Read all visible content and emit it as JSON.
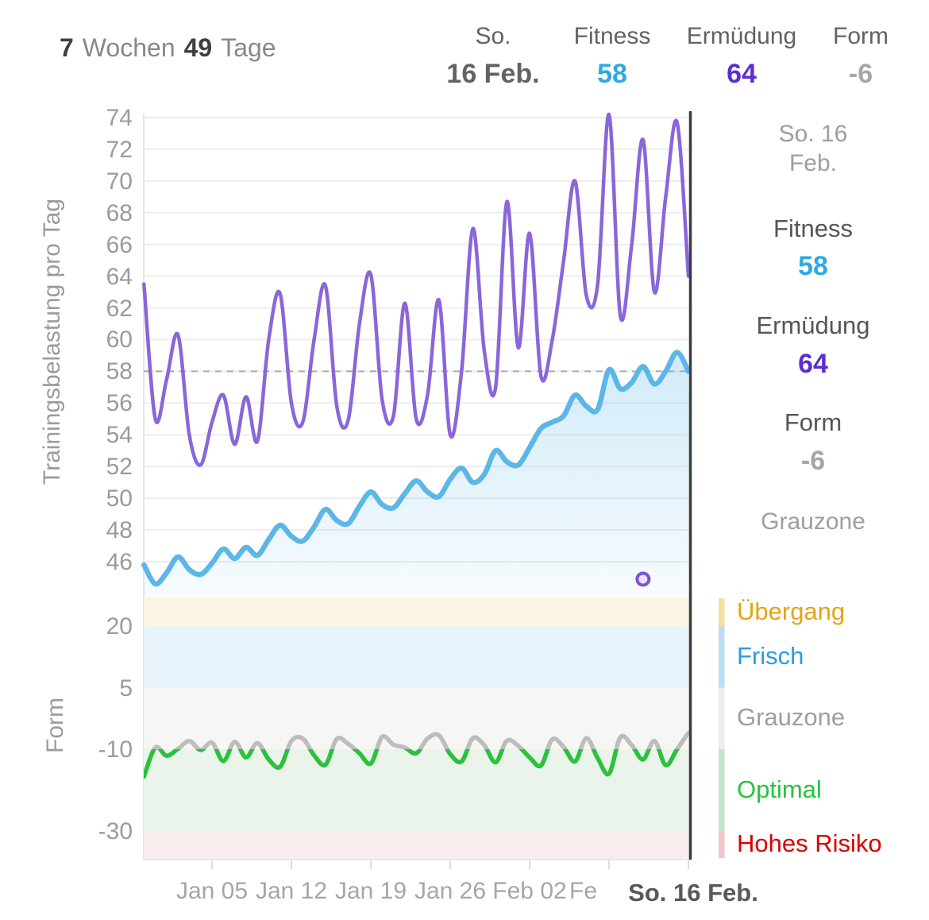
{
  "header": {
    "period": {
      "weeks_value": "7",
      "weeks_label": "Wochen",
      "days_value": "49",
      "days_label": "Tage"
    },
    "summary": {
      "day_label": "So.",
      "date_value": "16 Feb.",
      "fitness_label": "Fitness",
      "fitness_value": "58",
      "fatigue_label": "Ermüdung",
      "fatigue_value": "64",
      "form_label": "Form",
      "form_value": "-6"
    }
  },
  "sidebar": {
    "date_line1": "So. 16",
    "date_line2": "Feb.",
    "fitness_label": "Fitness",
    "fitness_value": "58",
    "fatigue_label": "Ermüdung",
    "fatigue_value": "64",
    "form_label": "Form",
    "form_value": "-6",
    "zone_label": "Grauzone"
  },
  "zones": [
    {
      "label": "Übergang",
      "from": 20,
      "to": 27.3,
      "band_color": "#FBF6E3",
      "strip_color": "#F3E0A2",
      "text_color": "#E3A50F"
    },
    {
      "label": "Frisch",
      "from": 5,
      "to": 20,
      "band_color": "#E8F2FA",
      "strip_color": "#BCDCF3",
      "text_color": "#2D9BE8"
    },
    {
      "label": "Grauzone",
      "from": -10,
      "to": 5,
      "band_color": "#F6F6F4",
      "strip_color": "#ECECEA",
      "text_color": "#9E9E9E"
    },
    {
      "label": "Optimal",
      "from": -30,
      "to": -10,
      "band_color": "#EAF4EB",
      "strip_color": "#C6E5C9",
      "text_color": "#27C23E"
    },
    {
      "label": "Hohes Risiko",
      "from": -37,
      "to": -30,
      "band_color": "#F9ECEC",
      "strip_color": "#F1C6CA",
      "text_color": "#DB0000"
    }
  ],
  "colors": {
    "fitness_value": "#2FA9E1",
    "fatigue_value": "#5A2ECF",
    "form_value_muted": "#A6A6A6",
    "fatigue_line": "#8A66D9",
    "fitness_line": "#5CB6E7",
    "form_line_optimal": "#2CC13D",
    "form_line_gray": "#BDBDBD",
    "cursor": "#3C3C3C",
    "grid": "#EDEDED",
    "tick_text": "#9B9B9B",
    "dashed_ref": "#ABABAB"
  },
  "chart_data": [
    {
      "type": "line",
      "title": "Trainingsbelastung (Fitness / Ermüdung) über 49 Tage",
      "ylabel": "Trainingsbelastung pro Tag",
      "x_days": 49,
      "xticklabels": [
        "Jan 05",
        "Jan 12",
        "Jan 19",
        "Jan 26",
        "Feb 02",
        "Fe"
      ],
      "cursor_xlabel": "So. 16 Feb.",
      "yticks": [
        74,
        72,
        70,
        68,
        66,
        64,
        62,
        60,
        58,
        56,
        54,
        52,
        50,
        48,
        46
      ],
      "ylim": [
        43.8,
        74.4
      ],
      "grid": true,
      "reference_line": 58,
      "series": [
        {
          "name": "Ermüdung",
          "color": "#8A66D9",
          "values": [
            63.5,
            55.0,
            57.5,
            60.3,
            54.0,
            52.1,
            54.8,
            56.5,
            53.4,
            56.4,
            53.6,
            60.0,
            62.9,
            56.0,
            54.8,
            60.0,
            63.4,
            55.8,
            54.9,
            61.0,
            64.1,
            56.2,
            55.2,
            62.3,
            55.0,
            56.5,
            62.5,
            54.0,
            58.0,
            67.0,
            59.3,
            57.0,
            68.7,
            59.5,
            66.7,
            57.7,
            60.0,
            65.0,
            70.0,
            62.8,
            63.5,
            74.2,
            61.5,
            66.0,
            72.6,
            63.0,
            69.0,
            73.7,
            64.0
          ]
        },
        {
          "name": "Fitness",
          "color": "#5CB6E7",
          "area_fill": true,
          "values": [
            45.8,
            44.6,
            45.3,
            46.3,
            45.5,
            45.2,
            45.9,
            46.8,
            46.2,
            46.9,
            46.4,
            47.4,
            48.3,
            47.6,
            47.3,
            48.2,
            49.3,
            48.6,
            48.4,
            49.5,
            50.4,
            49.6,
            49.4,
            50.3,
            51.1,
            50.4,
            50.1,
            51.2,
            51.9,
            51.0,
            51.5,
            53.0,
            52.3,
            52.1,
            53.2,
            54.4,
            54.8,
            55.2,
            56.5,
            55.8,
            55.6,
            58.1,
            56.9,
            57.3,
            58.3,
            57.2,
            58.0,
            59.2,
            58.0
          ]
        }
      ],
      "marker": {
        "day": 44,
        "value": 44.9
      }
    },
    {
      "type": "line",
      "title": "Form über 49 Tage",
      "ylabel": "Form",
      "yticks": [
        20,
        5,
        -10,
        -30
      ],
      "ylim": [
        -37,
        27.3
      ],
      "threshold": -10,
      "series": [
        {
          "name": "Form",
          "values": [
            -16.7,
            -9.6,
            -11.6,
            -9.9,
            -8.0,
            -10.2,
            -8.4,
            -12.9,
            -8.2,
            -12.0,
            -8.5,
            -12.5,
            -14.3,
            -8.0,
            -7.4,
            -11.5,
            -13.8,
            -7.5,
            -8.7,
            -11.0,
            -13.5,
            -7.0,
            -8.9,
            -9.6,
            -11.0,
            -7.4,
            -6.6,
            -11.2,
            -13.0,
            -7.3,
            -9.0,
            -13.2,
            -7.9,
            -9.2,
            -12.0,
            -14.0,
            -7.6,
            -9.5,
            -13.0,
            -7.3,
            -12.2,
            -16.0,
            -7.1,
            -9.0,
            -12.5,
            -8.0,
            -13.9,
            -10.0,
            -6.0
          ]
        }
      ]
    }
  ]
}
